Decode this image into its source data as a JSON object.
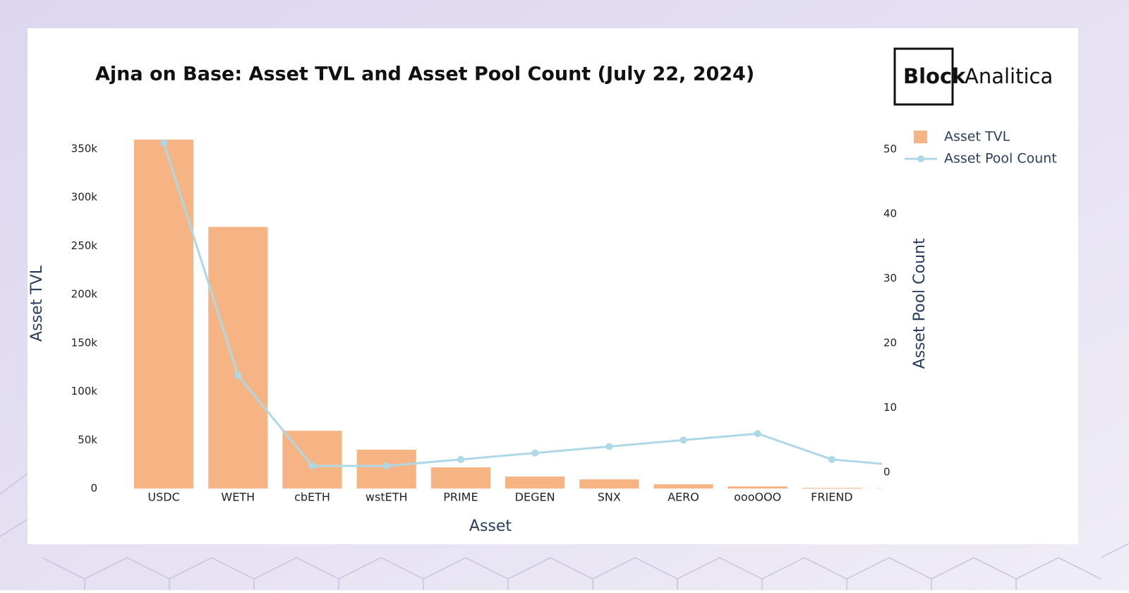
{
  "chart_data": {
    "type": "bar",
    "title": "Ajna on Base: Asset TVL and Asset Pool Count (July 22, 2024)",
    "logo": {
      "bold": "Block",
      "light": "Analitica"
    },
    "x_label": "Asset",
    "y_label": "Asset TVL",
    "y2_label": "Asset Pool Count",
    "categories": [
      "USDC",
      "WETH",
      "cbETH",
      "wstETH",
      "PRIME",
      "DEGEN",
      "SNX",
      "AERO",
      "oooOOO",
      "FRIEND",
      null
    ],
    "series": [
      {
        "name": "Asset TVL",
        "type": "bar",
        "color": "#f6b383",
        "values": [
          359500,
          269500,
          59500,
          40000,
          21800,
          12300,
          9400,
          4400,
          2200,
          700,
          300
        ]
      },
      {
        "name": "Asset Pool Count",
        "type": "line",
        "color": "#add8e6",
        "axis": "y2",
        "values": [
          51,
          15,
          1,
          1,
          2,
          3,
          4,
          5,
          6,
          2,
          1
        ]
      }
    ],
    "ylim": [
      0,
      360000
    ],
    "yticks": [
      0,
      {
        "value": 50000,
        "label": "50k"
      },
      {
        "value": 100000,
        "label": "100k"
      },
      {
        "value": 150000,
        "label": "150k"
      },
      {
        "value": 200000,
        "label": "200k"
      },
      {
        "value": 250000,
        "label": "250k"
      },
      {
        "value": 300000,
        "label": "300k"
      },
      {
        "value": 350000,
        "label": "350k"
      }
    ],
    "y2lim": [
      -2.5,
      51.6
    ],
    "y2ticks": [
      0,
      10,
      20,
      30,
      40,
      50
    ],
    "grid": false,
    "legend": "top-right"
  }
}
